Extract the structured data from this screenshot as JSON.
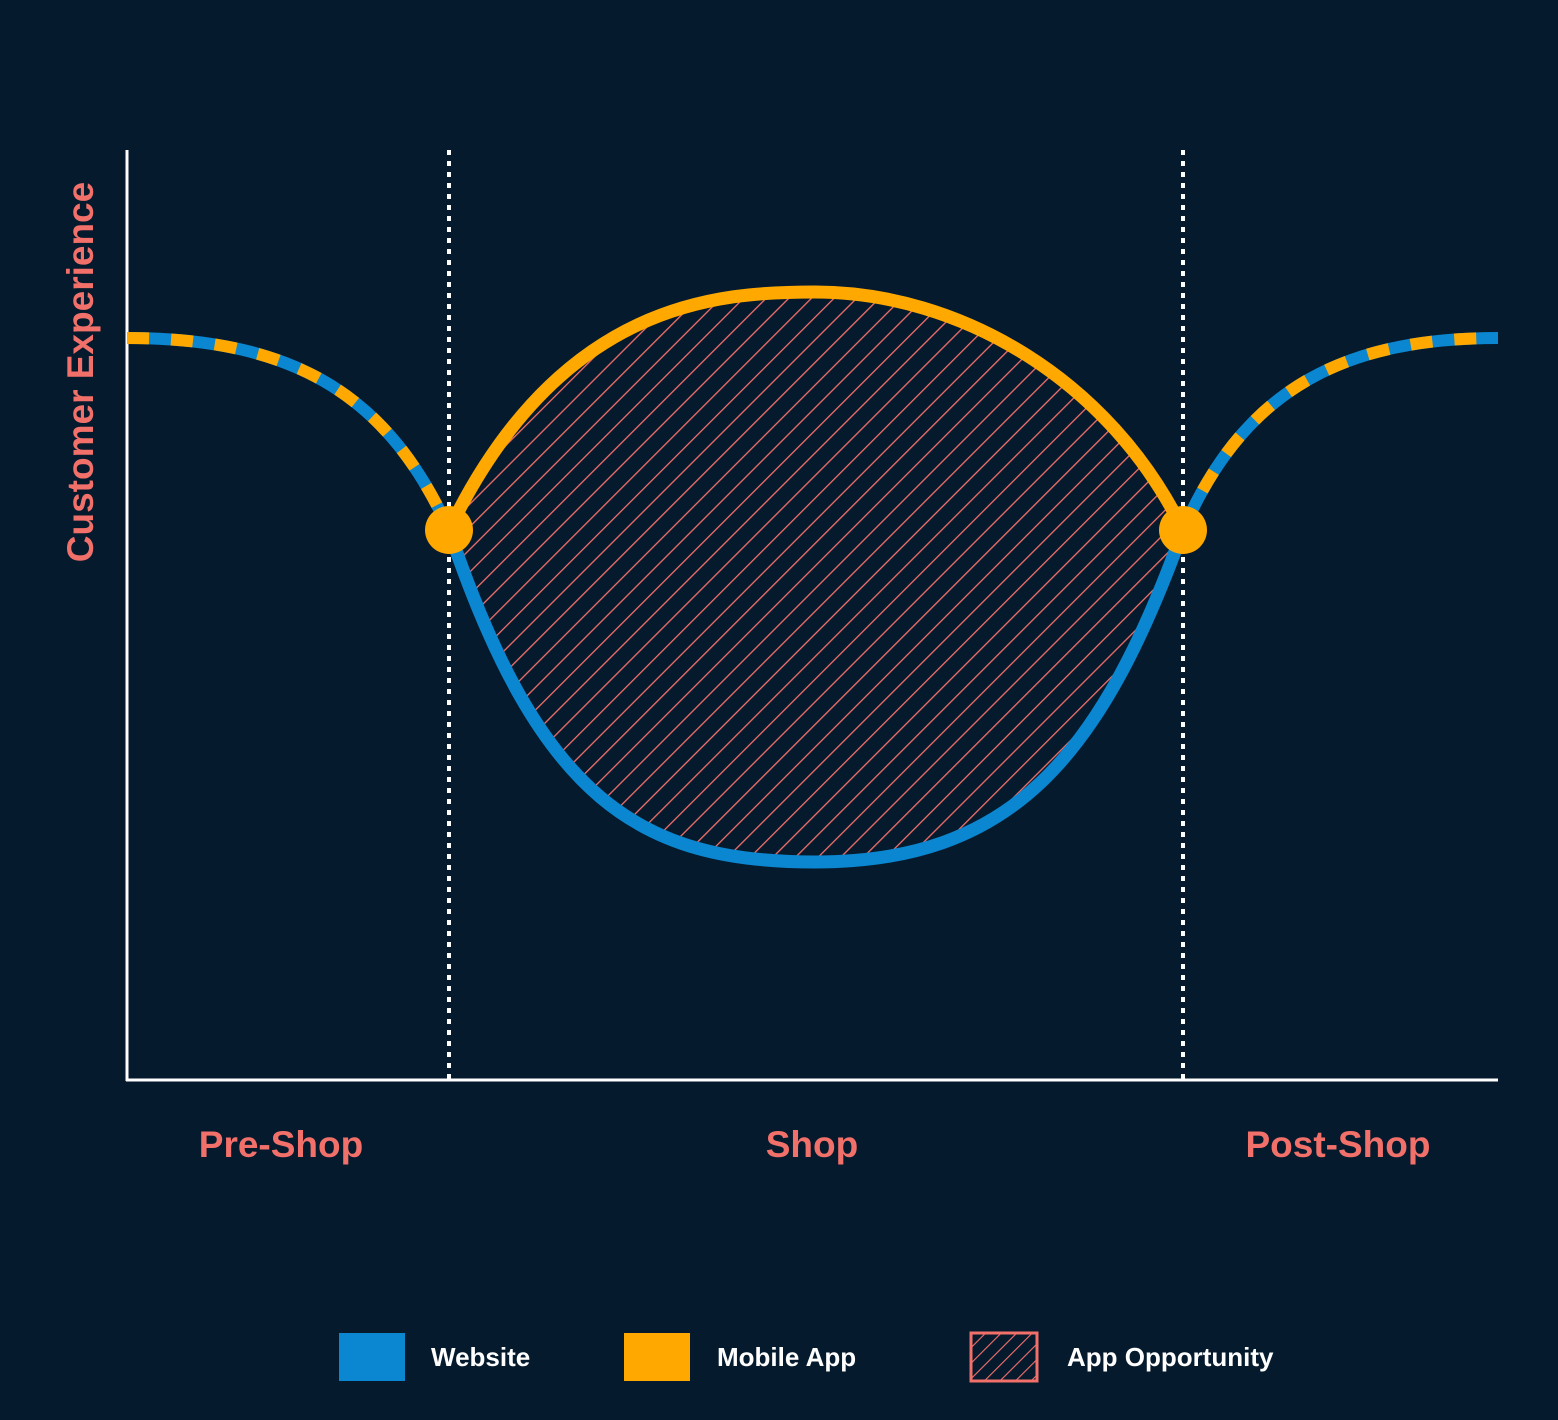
{
  "diagram": {
    "y_axis_label": "Customer Experience",
    "phases": [
      {
        "key": "pre_shop",
        "label": "Pre-Shop"
      },
      {
        "key": "shop",
        "label": "Shop"
      },
      {
        "key": "post_shop",
        "label": "Post-Shop"
      }
    ],
    "legend": [
      {
        "key": "website",
        "label": "Website",
        "color": "#0a87d0"
      },
      {
        "key": "mobile_app",
        "label": "Mobile App",
        "color": "#ffa800"
      },
      {
        "key": "app_opportunity",
        "label": "App Opportunity",
        "color": "#f2706a"
      }
    ],
    "colors": {
      "background": "#061a2e",
      "axis": "#ffffff",
      "label": "#f2706a",
      "website": "#0a87d0",
      "mobile_app": "#ffa800",
      "hatch": "#f2706a",
      "divider": "#ffffff"
    }
  }
}
